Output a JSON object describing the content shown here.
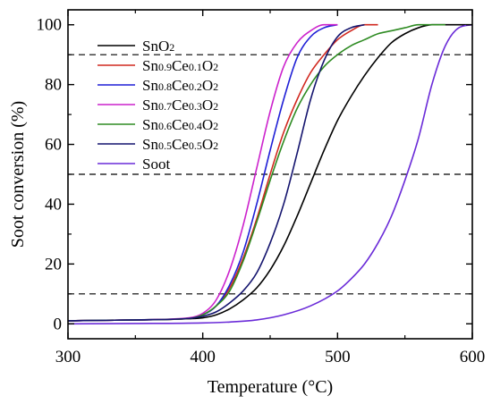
{
  "chart_data": {
    "type": "line",
    "xlabel": "Temperature (°C)",
    "ylabel": "Soot conversion (%)",
    "xlim": [
      300,
      600
    ],
    "ylim": [
      -5,
      105
    ],
    "xticks": [
      300,
      400,
      500,
      600
    ],
    "yticks": [
      0,
      20,
      40,
      60,
      80,
      100
    ],
    "x_tick_labels": [
      "300",
      "400",
      "500",
      "600"
    ],
    "y_tick_labels": [
      "0",
      "20",
      "40",
      "60",
      "80",
      "100"
    ],
    "minor_ticks": true,
    "grid": false,
    "legend": "top-left",
    "reference_lines": [
      {
        "axis": "y",
        "value": 10,
        "style": "dashed"
      },
      {
        "axis": "y",
        "value": 50,
        "style": "dashed"
      },
      {
        "axis": "y",
        "value": 90,
        "style": "dashed"
      }
    ],
    "series": [
      {
        "name": "SnO2",
        "legend_parts": [
          {
            "t": "SnO",
            "sub": false
          },
          {
            "t": "2",
            "sub": true
          }
        ],
        "color": "#000000",
        "x": [
          300,
          350,
          390,
          400,
          410,
          420,
          430,
          440,
          450,
          460,
          470,
          480,
          490,
          500,
          510,
          520,
          530,
          540,
          550,
          560,
          570,
          580,
          590,
          600
        ],
        "y": [
          1,
          1.3,
          1.7,
          2,
          3,
          5,
          8,
          12,
          18,
          26,
          36,
          47,
          58,
          68,
          76,
          83,
          89,
          94,
          97,
          99,
          100,
          100,
          100,
          100
        ]
      },
      {
        "name": "Sn0.9Ce0.1O2",
        "legend_parts": [
          {
            "t": "Sn",
            "sub": false
          },
          {
            "t": "0.9",
            "sub": true
          },
          {
            "t": "Ce",
            "sub": false
          },
          {
            "t": "0.1",
            "sub": true
          },
          {
            "t": "O",
            "sub": false
          },
          {
            "t": "2",
            "sub": true
          }
        ],
        "color": "#d1281f",
        "x": [
          300,
          350,
          390,
          400,
          410,
          420,
          430,
          440,
          450,
          460,
          470,
          480,
          490,
          500,
          510,
          520,
          530
        ],
        "y": [
          1,
          1.3,
          1.8,
          3,
          6,
          12,
          22,
          35,
          50,
          64,
          75,
          84,
          90,
          95,
          98,
          100,
          100
        ]
      },
      {
        "name": "Sn0.8Ce0.2O2",
        "legend_parts": [
          {
            "t": "Sn",
            "sub": false
          },
          {
            "t": "0.8",
            "sub": true
          },
          {
            "t": "Ce",
            "sub": false
          },
          {
            "t": "0.2",
            "sub": true
          },
          {
            "t": "O",
            "sub": false
          },
          {
            "t": "2",
            "sub": true
          }
        ],
        "color": "#1f1fd6",
        "x": [
          300,
          350,
          390,
          400,
          410,
          420,
          430,
          440,
          450,
          460,
          470,
          480,
          490,
          500
        ],
        "y": [
          1,
          1.3,
          1.9,
          3,
          6,
          13,
          24,
          40,
          58,
          75,
          89,
          96,
          99,
          100
        ]
      },
      {
        "name": "Sn0.7Ce0.3O2",
        "legend_parts": [
          {
            "t": "Sn",
            "sub": false
          },
          {
            "t": "0.7",
            "sub": true
          },
          {
            "t": "Ce",
            "sub": false
          },
          {
            "t": "0.3",
            "sub": true
          },
          {
            "t": "O",
            "sub": false
          },
          {
            "t": "2",
            "sub": true
          }
        ],
        "color": "#cc22cc",
        "x": [
          300,
          350,
          390,
          400,
          410,
          420,
          430,
          440,
          450,
          460,
          470,
          480,
          490,
          500
        ],
        "y": [
          1,
          1.3,
          2,
          3.5,
          8,
          18,
          33,
          52,
          71,
          86,
          94,
          98,
          100,
          100
        ]
      },
      {
        "name": "Sn0.6Ce0.4O2",
        "legend_parts": [
          {
            "t": "Sn",
            "sub": false
          },
          {
            "t": "0.6",
            "sub": true
          },
          {
            "t": "Ce",
            "sub": false
          },
          {
            "t": "0.4",
            "sub": true
          },
          {
            "t": "O",
            "sub": false
          },
          {
            "t": "2",
            "sub": true
          }
        ],
        "color": "#2e8b22",
        "x": [
          300,
          350,
          390,
          400,
          410,
          420,
          430,
          440,
          450,
          460,
          470,
          480,
          490,
          500,
          510,
          520,
          530,
          540,
          550,
          560,
          570,
          580
        ],
        "y": [
          1,
          1.3,
          1.8,
          3,
          6,
          11,
          21,
          34,
          48,
          61,
          72,
          80,
          86,
          90,
          93,
          95,
          97,
          98,
          99,
          100,
          100,
          100
        ]
      },
      {
        "name": "Sn0.5Ce0.5O2",
        "legend_parts": [
          {
            "t": "Sn",
            "sub": false
          },
          {
            "t": "0.5",
            "sub": true
          },
          {
            "t": "Ce",
            "sub": false
          },
          {
            "t": "0.5",
            "sub": true
          },
          {
            "t": "O",
            "sub": false
          },
          {
            "t": "2",
            "sub": true
          }
        ],
        "color": "#14146e",
        "x": [
          300,
          350,
          390,
          400,
          410,
          420,
          430,
          440,
          450,
          460,
          470,
          480,
          490,
          500,
          510,
          520
        ],
        "y": [
          1,
          1.3,
          1.8,
          2.5,
          4,
          7,
          11,
          17,
          27,
          40,
          57,
          75,
          88,
          96,
          99,
          100
        ]
      },
      {
        "name": "Soot",
        "legend_parts": [
          {
            "t": "Soot",
            "sub": false
          }
        ],
        "color": "#6a2bd8",
        "x": [
          300,
          350,
          400,
          420,
          440,
          460,
          480,
          500,
          510,
          520,
          530,
          540,
          550,
          560,
          570,
          580,
          590,
          600
        ],
        "y": [
          0,
          0.1,
          0.3,
          0.6,
          1.3,
          3,
          6,
          11,
          15,
          20,
          27,
          36,
          48,
          62,
          80,
          93,
          99,
          100
        ]
      }
    ]
  }
}
